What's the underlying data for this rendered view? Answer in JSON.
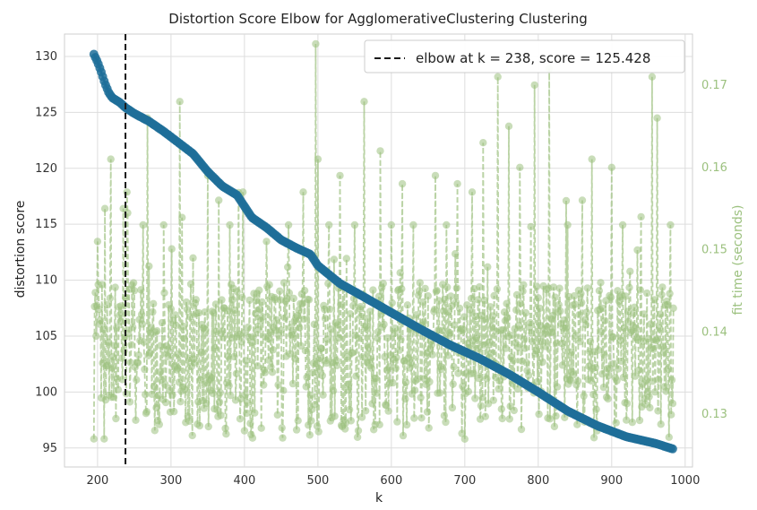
{
  "chart_data": {
    "type": "line",
    "title": "Distortion Score Elbow for AgglomerativeClustering Clustering",
    "xlabel": "k",
    "ylabel": "distortion score",
    "y2label": "fit time (seconds)",
    "xlim": [
      155,
      1010
    ],
    "ylim": [
      93.3,
      132.0
    ],
    "y2lim": [
      0.1236,
      0.1762
    ],
    "x_ticks": [
      200,
      300,
      400,
      500,
      600,
      700,
      800,
      900,
      1000
    ],
    "y_ticks": [
      95,
      100,
      105,
      110,
      115,
      120,
      125,
      130
    ],
    "y2_ticks": [
      0.13,
      0.14,
      0.15,
      0.16,
      0.17
    ],
    "grid": true,
    "legend_position": "top-right",
    "legend_label": "elbow at k = 238, score = 125.428",
    "elbow": {
      "k": 238,
      "score": 125.428
    },
    "k_range": [
      195,
      984
    ],
    "series": [
      {
        "name": "distortion score",
        "color": "#1f6f99",
        "points": [
          [
            195,
            130.2
          ],
          [
            200,
            129.5
          ],
          [
            205,
            128.6
          ],
          [
            210,
            127.6
          ],
          [
            215,
            126.8
          ],
          [
            220,
            126.3
          ],
          [
            230,
            125.9
          ],
          [
            238,
            125.428
          ],
          [
            250,
            124.9
          ],
          [
            270,
            124.2
          ],
          [
            290,
            123.3
          ],
          [
            310,
            122.3
          ],
          [
            330,
            121.3
          ],
          [
            350,
            119.7
          ],
          [
            370,
            118.4
          ],
          [
            390,
            117.6
          ],
          [
            410,
            115.6
          ],
          [
            430,
            114.7
          ],
          [
            450,
            113.6
          ],
          [
            470,
            112.9
          ],
          [
            490,
            112.3
          ],
          [
            500,
            111.3
          ],
          [
            530,
            109.7
          ],
          [
            560,
            108.6
          ],
          [
            600,
            107.1
          ],
          [
            640,
            105.6
          ],
          [
            680,
            104.2
          ],
          [
            720,
            103.0
          ],
          [
            760,
            101.6
          ],
          [
            800,
            100.0
          ],
          [
            840,
            98.3
          ],
          [
            880,
            97.0
          ],
          [
            920,
            96.0
          ],
          [
            960,
            95.4
          ],
          [
            984,
            94.9
          ]
        ]
      },
      {
        "name": "fit time (seconds)",
        "color": "#9cc17f",
        "baseline_range": [
          0.127,
          0.146
        ],
        "peaks": [
          [
            200,
            0.151
          ],
          [
            205,
            0.132
          ],
          [
            210,
            0.155
          ],
          [
            218,
            0.161
          ],
          [
            228,
            0.133
          ],
          [
            235,
            0.155
          ],
          [
            240,
            0.157
          ],
          [
            262,
            0.153
          ],
          [
            268,
            0.166
          ],
          [
            290,
            0.153
          ],
          [
            312,
            0.168
          ],
          [
            330,
            0.149
          ],
          [
            350,
            0.159
          ],
          [
            365,
            0.156
          ],
          [
            380,
            0.153
          ],
          [
            398,
            0.157
          ],
          [
            430,
            0.151
          ],
          [
            460,
            0.153
          ],
          [
            480,
            0.157
          ],
          [
            497,
            0.175
          ],
          [
            500,
            0.161
          ],
          [
            515,
            0.153
          ],
          [
            530,
            0.159
          ],
          [
            550,
            0.153
          ],
          [
            563,
            0.168
          ],
          [
            585,
            0.162
          ],
          [
            600,
            0.153
          ],
          [
            615,
            0.158
          ],
          [
            630,
            0.153
          ],
          [
            660,
            0.159
          ],
          [
            675,
            0.153
          ],
          [
            690,
            0.158
          ],
          [
            710,
            0.157
          ],
          [
            725,
            0.163
          ],
          [
            745,
            0.171
          ],
          [
            760,
            0.165
          ],
          [
            775,
            0.16
          ],
          [
            795,
            0.17
          ],
          [
            815,
            0.172
          ],
          [
            840,
            0.153
          ],
          [
            860,
            0.156
          ],
          [
            873,
            0.161
          ],
          [
            900,
            0.16
          ],
          [
            915,
            0.153
          ],
          [
            940,
            0.154
          ],
          [
            955,
            0.171
          ],
          [
            962,
            0.166
          ],
          [
            980,
            0.153
          ]
        ],
        "lows": [
          [
            200,
            0.127
          ],
          [
            312,
            0.126
          ],
          [
            400,
            0.128
          ],
          [
            600,
            0.129
          ],
          [
            700,
            0.127
          ],
          [
            880,
            0.128
          ]
        ]
      }
    ]
  }
}
